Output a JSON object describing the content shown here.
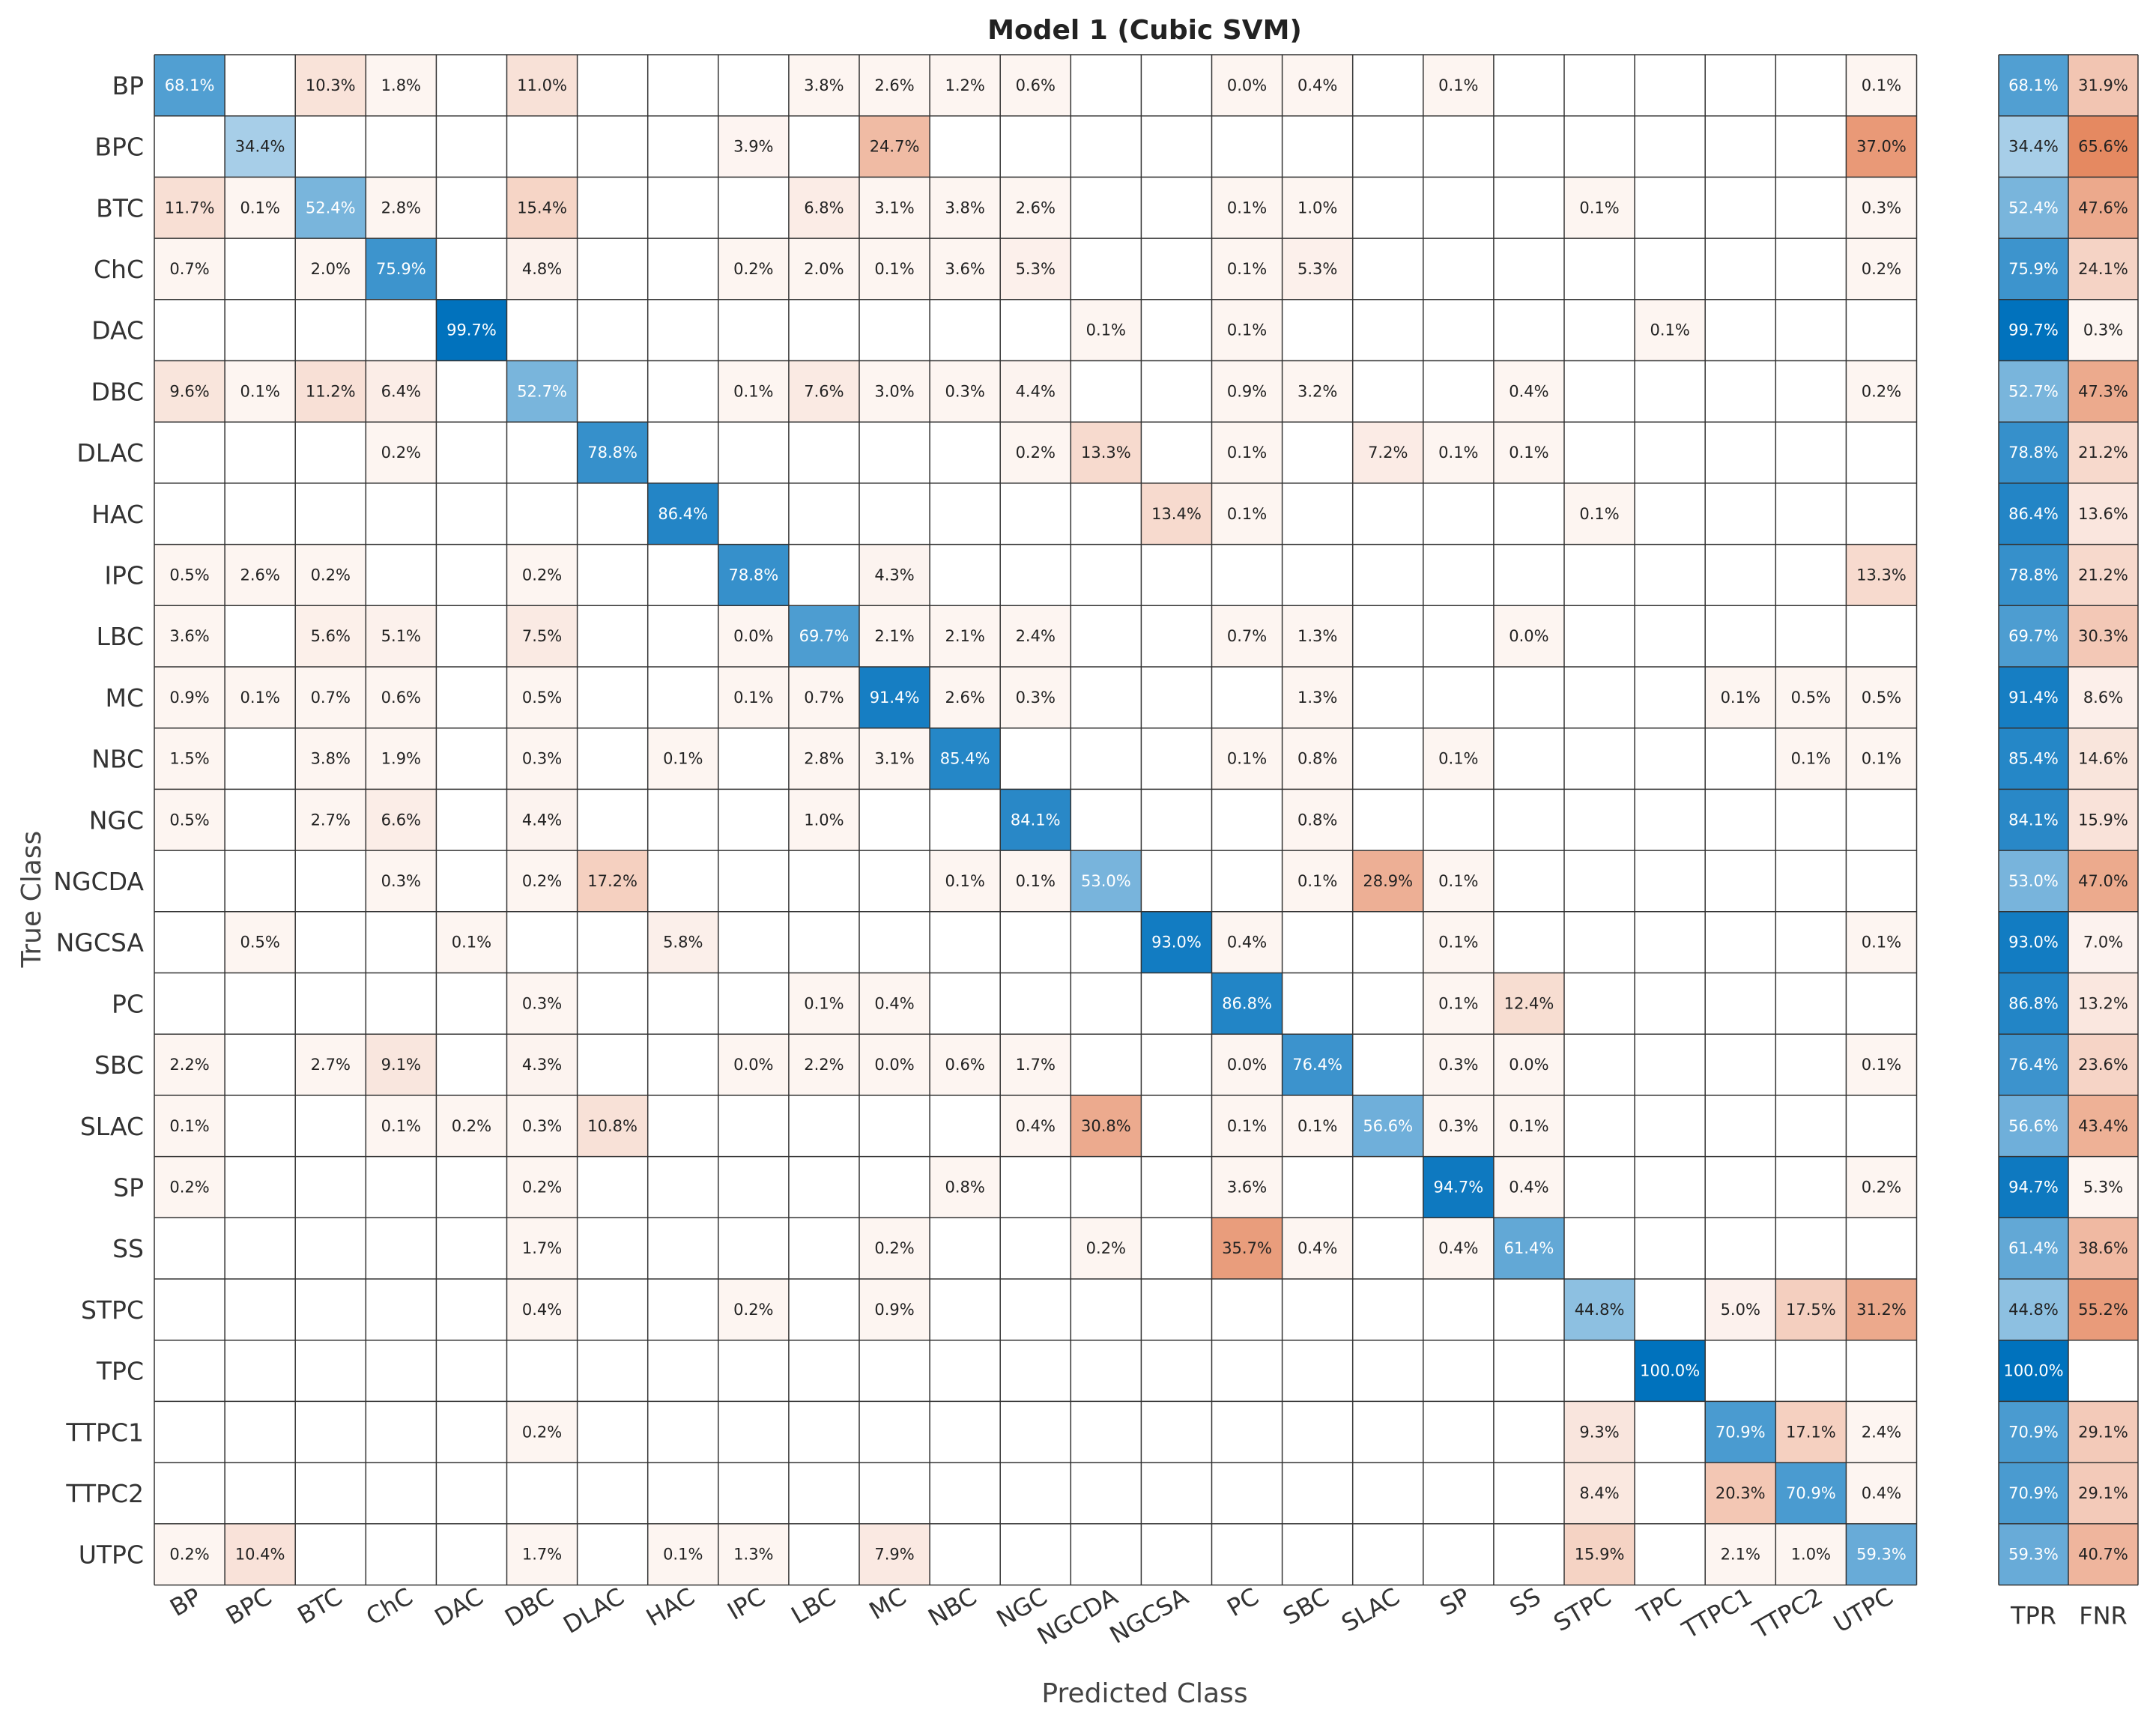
{
  "chart_data": {
    "type": "heatmap",
    "title": "Model 1 (Cubic SVM)",
    "xlabel": "Predicted Class",
    "ylabel": "True Class",
    "classes": [
      "BP",
      "BPC",
      "BTC",
      "ChC",
      "DAC",
      "DBC",
      "DLAC",
      "HAC",
      "IPC",
      "LBC",
      "MC",
      "NBC",
      "NGC",
      "NGCDA",
      "NGCSA",
      "PC",
      "SBC",
      "SLAC",
      "SP",
      "SS",
      "STPC",
      "TPC",
      "TTPC1",
      "TTPC2",
      "UTPC"
    ],
    "value_unit": "%",
    "colors": {
      "diagonal": "#0072bd",
      "off_diagonal": "#d95319",
      "grid": "#333333"
    },
    "matrix": [
      [
        68.1,
        null,
        10.3,
        1.8,
        null,
        11.0,
        null,
        null,
        null,
        3.8,
        2.6,
        1.2,
        0.6,
        null,
        null,
        0.0,
        0.4,
        null,
        0.1,
        null,
        null,
        null,
        null,
        null,
        0.1
      ],
      [
        null,
        34.4,
        null,
        null,
        null,
        null,
        null,
        null,
        3.9,
        null,
        24.7,
        null,
        null,
        null,
        null,
        null,
        null,
        null,
        null,
        null,
        null,
        null,
        null,
        null,
        37.0
      ],
      [
        11.7,
        0.1,
        52.4,
        2.8,
        null,
        15.4,
        null,
        null,
        null,
        6.8,
        3.1,
        3.8,
        2.6,
        null,
        null,
        0.1,
        1.0,
        null,
        null,
        null,
        0.1,
        null,
        null,
        null,
        0.3
      ],
      [
        0.7,
        null,
        2.0,
        75.9,
        null,
        4.8,
        null,
        null,
        0.2,
        2.0,
        0.1,
        3.6,
        5.3,
        null,
        null,
        0.1,
        5.3,
        null,
        null,
        null,
        null,
        null,
        null,
        null,
        0.2
      ],
      [
        null,
        null,
        null,
        null,
        99.7,
        null,
        null,
        null,
        null,
        null,
        null,
        null,
        null,
        0.1,
        null,
        0.1,
        null,
        null,
        null,
        null,
        null,
        0.1,
        null,
        null,
        null
      ],
      [
        9.6,
        0.1,
        11.2,
        6.4,
        null,
        52.7,
        null,
        null,
        0.1,
        7.6,
        3.0,
        0.3,
        4.4,
        null,
        null,
        0.9,
        3.2,
        null,
        null,
        0.4,
        null,
        null,
        null,
        null,
        0.2
      ],
      [
        null,
        null,
        null,
        0.2,
        null,
        null,
        78.8,
        null,
        null,
        null,
        null,
        null,
        0.2,
        13.3,
        null,
        0.1,
        null,
        7.2,
        0.1,
        0.1,
        null,
        null,
        null,
        null,
        null
      ],
      [
        null,
        null,
        null,
        null,
        null,
        null,
        null,
        86.4,
        null,
        null,
        null,
        null,
        null,
        null,
        13.4,
        0.1,
        null,
        null,
        null,
        null,
        0.1,
        null,
        null,
        null,
        null
      ],
      [
        0.5,
        2.6,
        0.2,
        null,
        null,
        0.2,
        null,
        null,
        78.8,
        null,
        4.3,
        null,
        null,
        null,
        null,
        null,
        null,
        null,
        null,
        null,
        null,
        null,
        null,
        null,
        13.3
      ],
      [
        3.6,
        null,
        5.6,
        5.1,
        null,
        7.5,
        null,
        null,
        0.0,
        69.7,
        2.1,
        2.1,
        2.4,
        null,
        null,
        0.7,
        1.3,
        null,
        null,
        0.0,
        null,
        null,
        null,
        null,
        null
      ],
      [
        0.9,
        0.1,
        0.7,
        0.6,
        null,
        0.5,
        null,
        null,
        0.1,
        0.7,
        91.4,
        2.6,
        0.3,
        null,
        null,
        null,
        1.3,
        null,
        null,
        null,
        null,
        null,
        0.1,
        0.5,
        0.5
      ],
      [
        1.5,
        null,
        3.8,
        1.9,
        null,
        0.3,
        null,
        0.1,
        null,
        2.8,
        3.1,
        85.4,
        null,
        null,
        null,
        0.1,
        0.8,
        null,
        0.1,
        null,
        null,
        null,
        null,
        0.1,
        0.1
      ],
      [
        0.5,
        null,
        2.7,
        6.6,
        null,
        4.4,
        null,
        null,
        null,
        1.0,
        null,
        null,
        84.1,
        null,
        null,
        null,
        0.8,
        null,
        null,
        null,
        null,
        null,
        null,
        null,
        null
      ],
      [
        null,
        null,
        null,
        0.3,
        null,
        0.2,
        17.2,
        null,
        null,
        null,
        null,
        0.1,
        0.1,
        53.0,
        null,
        null,
        0.1,
        28.9,
        0.1,
        null,
        null,
        null,
        null,
        null,
        null
      ],
      [
        null,
        0.5,
        null,
        null,
        0.1,
        null,
        null,
        5.8,
        null,
        null,
        null,
        null,
        null,
        null,
        93.0,
        0.4,
        null,
        null,
        0.1,
        null,
        null,
        null,
        null,
        null,
        0.1
      ],
      [
        null,
        null,
        null,
        null,
        null,
        0.3,
        null,
        null,
        null,
        0.1,
        0.4,
        null,
        null,
        null,
        null,
        86.8,
        null,
        null,
        0.1,
        12.4,
        null,
        null,
        null,
        null,
        null
      ],
      [
        2.2,
        null,
        2.7,
        9.1,
        null,
        4.3,
        null,
        null,
        0.0,
        2.2,
        0.0,
        0.6,
        1.7,
        null,
        null,
        0.0,
        76.4,
        null,
        0.3,
        0.0,
        null,
        null,
        null,
        null,
        0.1
      ],
      [
        0.1,
        null,
        null,
        0.1,
        0.2,
        0.3,
        10.8,
        null,
        null,
        null,
        null,
        null,
        0.4,
        30.8,
        null,
        0.1,
        0.1,
        56.6,
        0.3,
        0.1,
        null,
        null,
        null,
        null,
        null
      ],
      [
        0.2,
        null,
        null,
        null,
        null,
        0.2,
        null,
        null,
        null,
        null,
        null,
        0.8,
        null,
        null,
        null,
        3.6,
        null,
        null,
        94.7,
        0.4,
        null,
        null,
        null,
        null,
        0.2
      ],
      [
        null,
        null,
        null,
        null,
        null,
        1.7,
        null,
        null,
        null,
        null,
        0.2,
        null,
        null,
        0.2,
        null,
        35.7,
        0.4,
        null,
        0.4,
        61.4,
        null,
        null,
        null,
        null,
        null
      ],
      [
        null,
        null,
        null,
        null,
        null,
        0.4,
        null,
        null,
        0.2,
        null,
        0.9,
        null,
        null,
        null,
        null,
        null,
        null,
        null,
        null,
        null,
        44.8,
        null,
        5.0,
        17.5,
        31.2
      ],
      [
        null,
        null,
        null,
        null,
        null,
        null,
        null,
        null,
        null,
        null,
        null,
        null,
        null,
        null,
        null,
        null,
        null,
        null,
        null,
        null,
        null,
        100.0,
        null,
        null,
        null
      ],
      [
        null,
        null,
        null,
        null,
        null,
        0.2,
        null,
        null,
        null,
        null,
        null,
        null,
        null,
        null,
        null,
        null,
        null,
        null,
        null,
        null,
        9.3,
        null,
        70.9,
        17.1,
        2.4
      ],
      [
        null,
        null,
        null,
        null,
        null,
        null,
        null,
        null,
        null,
        null,
        null,
        null,
        null,
        null,
        null,
        null,
        null,
        null,
        null,
        null,
        8.4,
        null,
        20.3,
        70.9,
        0.4
      ],
      [
        0.2,
        10.4,
        null,
        null,
        null,
        1.7,
        null,
        0.1,
        1.3,
        null,
        7.9,
        null,
        null,
        null,
        null,
        null,
        null,
        null,
        null,
        null,
        15.9,
        null,
        2.1,
        1.0,
        59.3
      ]
    ],
    "summary": {
      "labels": [
        "TPR",
        "FNR"
      ],
      "tpr": [
        68.1,
        34.4,
        52.4,
        75.9,
        99.7,
        52.7,
        78.8,
        86.4,
        78.8,
        69.7,
        91.4,
        85.4,
        84.1,
        53.0,
        93.0,
        86.8,
        76.4,
        56.6,
        94.7,
        61.4,
        44.8,
        100.0,
        70.9,
        70.9,
        59.3
      ],
      "fnr": [
        31.9,
        65.6,
        47.6,
        24.1,
        0.3,
        47.3,
        21.2,
        13.6,
        21.2,
        30.3,
        8.6,
        14.6,
        15.9,
        47.0,
        7.0,
        13.2,
        23.6,
        43.4,
        5.3,
        38.6,
        55.2,
        null,
        29.1,
        29.1,
        40.7
      ]
    }
  }
}
